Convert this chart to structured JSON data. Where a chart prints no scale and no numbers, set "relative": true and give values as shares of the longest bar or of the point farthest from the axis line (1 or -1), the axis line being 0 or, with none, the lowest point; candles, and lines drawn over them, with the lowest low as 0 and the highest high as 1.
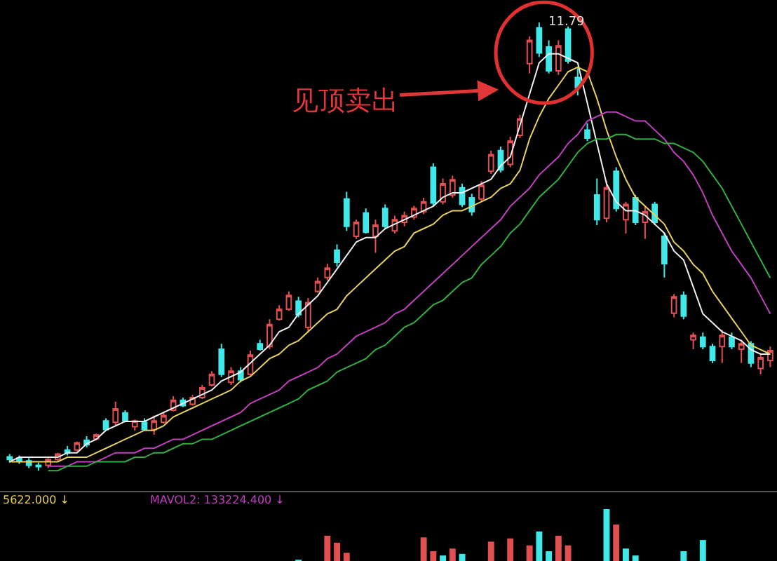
{
  "chart_data": [
    {
      "type": "candlestick",
      "relative": true,
      "annotations": [
        "见顶卖出",
        "11.79"
      ],
      "categories": [
        null,
        null,
        null,
        null,
        null,
        null,
        null,
        null,
        null,
        null,
        null,
        null,
        null,
        null,
        null,
        null,
        null,
        null,
        null,
        null,
        null,
        null,
        null,
        null,
        null,
        null,
        null,
        null,
        null,
        null,
        null,
        null,
        null,
        null,
        null,
        null,
        null,
        null,
        null,
        null,
        null,
        null,
        null,
        null,
        null,
        null,
        null,
        null,
        null,
        null,
        null,
        null,
        null,
        null,
        null,
        null,
        null,
        null,
        null,
        null,
        null,
        null,
        null,
        null,
        null,
        null,
        null,
        null,
        null,
        null,
        null,
        null,
        null,
        null,
        null,
        null,
        null,
        null,
        null,
        null
      ],
      "ohlc": [
        [
          0.031,
          0.037,
          0.018,
          0.025
        ],
        [
          0.028,
          0.034,
          0.015,
          0.022
        ],
        [
          0.022,
          0.028,
          0.006,
          0.012
        ],
        [
          0.012,
          0.018,
          0,
          0.009
        ],
        [
          0.012,
          0.028,
          0.006,
          0.025
        ],
        [
          0.025,
          0.04,
          0.022,
          0.037
        ],
        [
          0.046,
          0.055,
          0.034,
          0.04
        ],
        [
          0.046,
          0.065,
          0.043,
          0.062
        ],
        [
          0.068,
          0.077,
          0.052,
          0.058
        ],
        [
          0.071,
          0.083,
          0.068,
          0.08
        ],
        [
          0.111,
          0.117,
          0.089,
          0.092
        ],
        [
          0.108,
          0.154,
          0.102,
          0.138
        ],
        [
          0.129,
          0.135,
          0.108,
          0.111
        ],
        [
          0.098,
          0.114,
          0.089,
          0.111
        ],
        [
          0.108,
          0.117,
          0.089,
          0.092
        ],
        [
          0.092,
          0.123,
          0.08,
          0.111
        ],
        [
          0.108,
          0.129,
          0.105,
          0.123
        ],
        [
          0.135,
          0.166,
          0.132,
          0.157
        ],
        [
          0.157,
          0.163,
          0.142,
          0.145
        ],
        [
          0.148,
          0.169,
          0.145,
          0.163
        ],
        [
          0.163,
          0.191,
          0.16,
          0.185
        ],
        [
          0.191,
          0.222,
          0.188,
          0.215
        ],
        [
          0.271,
          0.283,
          0.209,
          0.215
        ],
        [
          0.197,
          0.231,
          0.191,
          0.222
        ],
        [
          0.222,
          0.231,
          0.197,
          0.203
        ],
        [
          0.215,
          0.268,
          0.212,
          0.258
        ],
        [
          0.283,
          0.292,
          0.268,
          0.271
        ],
        [
          0.277,
          0.338,
          0.271,
          0.326
        ],
        [
          0.338,
          0.369,
          0.335,
          0.36
        ],
        [
          0.36,
          0.4,
          0.357,
          0.391
        ],
        [
          0.378,
          0.388,
          0.342,
          0.348
        ],
        [
          0.32,
          0.385,
          0.308,
          0.375
        ],
        [
          0.4,
          0.431,
          0.397,
          0.422
        ],
        [
          0.431,
          0.462,
          0.425,
          0.452
        ],
        [
          0.492,
          0.505,
          0.455,
          0.465
        ],
        [
          0.606,
          0.622,
          0.535,
          0.545
        ],
        [
          0.523,
          0.56,
          0.517,
          0.554
        ],
        [
          0.575,
          0.585,
          0.529,
          0.532
        ],
        [
          0.523,
          0.56,
          0.486,
          0.548
        ],
        [
          0.585,
          0.594,
          0.538,
          0.545
        ],
        [
          0.535,
          0.569,
          0.529,
          0.56
        ],
        [
          0.554,
          0.578,
          0.545,
          0.569
        ],
        [
          0.566,
          0.591,
          0.56,
          0.585
        ],
        [
          0.578,
          0.609,
          0.572,
          0.6
        ],
        [
          0.677,
          0.686,
          0.591,
          0.597
        ],
        [
          0.6,
          0.652,
          0.594,
          0.64
        ],
        [
          0.615,
          0.658,
          0.609,
          0.649
        ],
        [
          0.631,
          0.64,
          0.588,
          0.594
        ],
        [
          0.609,
          0.618,
          0.569,
          0.578
        ],
        [
          0.606,
          0.646,
          0.6,
          0.637
        ],
        [
          0.668,
          0.714,
          0.662,
          0.705
        ],
        [
          0.714,
          0.723,
          0.665,
          0.671
        ],
        [
          0.683,
          0.745,
          0.677,
          0.735
        ],
        [
          0.748,
          0.794,
          0.742,
          0.785
        ],
        [
          0.908,
          0.969,
          0.886,
          0.96
        ],
        [
          0.988,
          1,
          0.923,
          0.932
        ],
        [
          0.945,
          0.96,
          0.886,
          0.892
        ],
        [
          0.892,
          0.96,
          0.883,
          0.948
        ],
        [
          0.985,
          0.991,
          0.908,
          0.914
        ],
        [
          0.877,
          0.898,
          0.837,
          0.855
        ],
        [
          0.76,
          0.775,
          0.735,
          0.742
        ],
        [
          0.615,
          0.652,
          0.548,
          0.56
        ],
        [
          0.563,
          0.646,
          0.554,
          0.631
        ],
        [
          0.668,
          0.677,
          0.578,
          0.585
        ],
        [
          0.56,
          0.6,
          0.529,
          0.594
        ],
        [
          0.609,
          0.615,
          0.548,
          0.554
        ],
        [
          0.554,
          0.591,
          0.517,
          0.578
        ],
        [
          0.594,
          0.6,
          0.548,
          0.554
        ],
        [
          0.523,
          0.529,
          0.431,
          0.462
        ],
        [
          0.351,
          0.394,
          0.342,
          0.388
        ],
        [
          0.391,
          0.4,
          0.338,
          0.345
        ],
        [
          0.292,
          0.308,
          0.271,
          0.302
        ],
        [
          0.298,
          0.308,
          0.271,
          0.277
        ],
        [
          0.277,
          0.283,
          0.24,
          0.246
        ],
        [
          0.277,
          0.314,
          0.24,
          0.302
        ],
        [
          0.298,
          0.308,
          0.271,
          0.277
        ],
        [
          0.271,
          0.292,
          0.24,
          0.283
        ],
        [
          0.283,
          0.289,
          0.231,
          0.24
        ],
        [
          0.228,
          0.262,
          0.215,
          0.252
        ],
        [
          0.246,
          0.277,
          0.231,
          0.268
        ]
      ],
      "series": [
        {
          "type": "line",
          "color": "#f0f0f0",
          "values": [
            0.02,
            0.03,
            0.03,
            0.03,
            0.03,
            0.03,
            0.04,
            0.04,
            0.06,
            0.07,
            0.09,
            0.1,
            0.11,
            0.11,
            0.11,
            0.12,
            0.13,
            0.14,
            0.15,
            0.16,
            0.17,
            0.18,
            0.2,
            0.21,
            0.22,
            0.24,
            0.26,
            0.28,
            0.31,
            0.32,
            0.35,
            0.37,
            0.39,
            0.42,
            0.45,
            0.48,
            0.51,
            0.52,
            0.52,
            0.54,
            0.55,
            0.56,
            0.57,
            0.58,
            0.59,
            0.61,
            0.62,
            0.62,
            0.63,
            0.64,
            0.65,
            0.68,
            0.7,
            0.77,
            0.84,
            0.91,
            0.93,
            0.93,
            0.92,
            0.91,
            0.82,
            0.73,
            0.64,
            0.6,
            0.58,
            0.58,
            0.57,
            0.55,
            0.53,
            0.49,
            0.47,
            0.41,
            0.35,
            0.33,
            0.31,
            0.3,
            0.29,
            0.27,
            0.26,
            0.26
          ]
        },
        {
          "type": "line",
          "color": "#e8d060",
          "values": [
            0.02,
            0.02,
            0.02,
            0.02,
            0.02,
            0.02,
            0.03,
            0.03,
            0.03,
            0.04,
            0.05,
            0.06,
            0.07,
            0.08,
            0.09,
            0.09,
            0.1,
            0.12,
            0.13,
            0.14,
            0.15,
            0.16,
            0.17,
            0.18,
            0.2,
            0.21,
            0.23,
            0.25,
            0.26,
            0.28,
            0.29,
            0.31,
            0.33,
            0.35,
            0.36,
            0.39,
            0.41,
            0.43,
            0.45,
            0.47,
            0.49,
            0.5,
            0.53,
            0.54,
            0.55,
            0.57,
            0.58,
            0.58,
            0.59,
            0.6,
            0.61,
            0.63,
            0.64,
            0.67,
            0.74,
            0.79,
            0.83,
            0.86,
            0.89,
            0.9,
            0.89,
            0.83,
            0.76,
            0.7,
            0.65,
            0.61,
            0.59,
            0.57,
            0.55,
            0.51,
            0.49,
            0.46,
            0.44,
            0.4,
            0.37,
            0.34,
            0.31,
            0.28,
            0.27,
            0.26
          ]
        },
        {
          "type": "line",
          "color": "#c040c0",
          "values": [
            null,
            null,
            null,
            null,
            0.01,
            0.01,
            0.01,
            0.02,
            0.02,
            0.02,
            0.03,
            0.04,
            0.04,
            0.04,
            0.05,
            0.05,
            0.06,
            0.07,
            0.07,
            0.08,
            0.09,
            0.1,
            0.11,
            0.12,
            0.13,
            0.15,
            0.16,
            0.17,
            0.18,
            0.2,
            0.21,
            0.22,
            0.23,
            0.25,
            0.26,
            0.28,
            0.3,
            0.31,
            0.32,
            0.33,
            0.35,
            0.36,
            0.38,
            0.4,
            0.42,
            0.44,
            0.46,
            0.48,
            0.5,
            0.52,
            0.54,
            0.56,
            0.59,
            0.61,
            0.63,
            0.66,
            0.68,
            0.7,
            0.73,
            0.75,
            0.78,
            0.79,
            0.8,
            0.8,
            0.79,
            0.78,
            0.78,
            0.76,
            0.74,
            0.71,
            0.69,
            0.66,
            0.62,
            0.57,
            0.53,
            0.49,
            0.46,
            0.43,
            0.39,
            0.35
          ]
        },
        {
          "type": "line",
          "color": "#30b040",
          "values": [
            null,
            null,
            null,
            null,
            0,
            0,
            0.01,
            0.01,
            0.01,
            0.02,
            0.02,
            0.02,
            0.02,
            0.03,
            0.03,
            0.04,
            0.04,
            0.05,
            0.06,
            0.06,
            0.07,
            0.07,
            0.08,
            0.09,
            0.1,
            0.11,
            0.12,
            0.13,
            0.14,
            0.15,
            0.16,
            0.18,
            0.19,
            0.2,
            0.22,
            0.23,
            0.24,
            0.25,
            0.27,
            0.28,
            0.3,
            0.32,
            0.33,
            0.35,
            0.37,
            0.38,
            0.4,
            0.42,
            0.43,
            0.46,
            0.48,
            0.5,
            0.53,
            0.55,
            0.58,
            0.61,
            0.63,
            0.65,
            0.68,
            0.71,
            0.73,
            0.74,
            0.74,
            0.75,
            0.75,
            0.74,
            0.74,
            0.74,
            0.73,
            0.73,
            0.72,
            0.71,
            0.69,
            0.66,
            0.63,
            0.59,
            0.55,
            0.51,
            0.47,
            0.43
          ]
        }
      ]
    },
    {
      "type": "bar",
      "relative": true,
      "annotations": [
        "5622.000 ↓",
        "MAVOL2: 133224.400 ↓"
      ],
      "categories": [
        null,
        null,
        null,
        null,
        null,
        null,
        null,
        null,
        null,
        null,
        null,
        null,
        null,
        null,
        null,
        null,
        null,
        null,
        null,
        null,
        null,
        null,
        null,
        null,
        null,
        null,
        null,
        null,
        null,
        null,
        null,
        null,
        null,
        null,
        null,
        null,
        null,
        null,
        null,
        null,
        null,
        null,
        null,
        null,
        null,
        null,
        null,
        null,
        null,
        null,
        null,
        null,
        null,
        null,
        null,
        null,
        null,
        null,
        null,
        null,
        null,
        null,
        null,
        null,
        null,
        null,
        null,
        null,
        null,
        null,
        null,
        null,
        null,
        null,
        null,
        null,
        null,
        null,
        null,
        null
      ],
      "values": [
        null,
        null,
        null,
        null,
        null,
        null,
        null,
        null,
        null,
        null,
        null,
        null,
        null,
        null,
        null,
        null,
        null,
        null,
        null,
        null,
        null,
        null,
        null,
        null,
        null,
        null,
        null,
        null,
        null,
        null,
        0.05,
        null,
        null,
        0.5,
        0.37,
        0.18,
        null,
        null,
        null,
        null,
        null,
        null,
        null,
        0.47,
        0.21,
        0.13,
        0.26,
        0.16,
        null,
        null,
        0.39,
        null,
        0.45,
        null,
        0.32,
        0.58,
        0.21,
        0.5,
        0.32,
        null,
        null,
        null,
        1,
        0.71,
        0.26,
        0.13,
        null,
        null,
        null,
        null,
        0.21,
        null,
        0.42,
        null,
        null,
        null,
        null,
        null,
        null,
        null
      ],
      "colors": [
        "#e05050",
        "#e05050",
        "#e05050",
        "#e05050",
        "#e05050",
        "#e05050",
        "#e05050",
        "#e05050",
        "#e05050",
        "#e05050",
        "#e05050",
        "#e05050",
        "#e05050",
        "#e05050",
        "#e05050",
        "#e05050",
        "#e05050",
        "#e05050",
        "#e05050",
        "#e05050",
        "#e05050",
        "#e05050",
        "#e05050",
        "#e05050",
        "#e05050",
        "#e05050",
        "#e05050",
        "#e05050",
        "#e05050",
        "#e05050",
        "#40e8e8",
        "#e05050",
        "#e05050",
        "#e05050",
        "#e05050",
        "#e05050",
        "#e05050",
        "#e05050",
        "#e05050",
        "#e05050",
        "#e05050",
        "#e05050",
        "#e05050",
        "#e05050",
        "#e05050",
        "#40e8e8",
        "#e05050",
        "#40e8e8",
        "#e05050",
        "#e05050",
        "#e05050",
        "#e05050",
        "#e05050",
        "#e05050",
        "#e05050",
        "#40e8e8",
        "#40e8e8",
        "#e05050",
        "#e05050",
        "#e05050",
        "#e05050",
        "#e05050",
        "#40e8e8",
        "#e05050",
        "#40e8e8",
        "#40e8e8",
        "#e05050",
        "#e05050",
        "#e05050",
        "#e05050",
        "#40e8e8",
        "#e05050",
        "#40e8e8",
        "#e05050",
        "#e05050",
        "#e05050",
        "#e05050",
        "#e05050",
        "#e05050",
        "#e05050"
      ]
    }
  ]
}
